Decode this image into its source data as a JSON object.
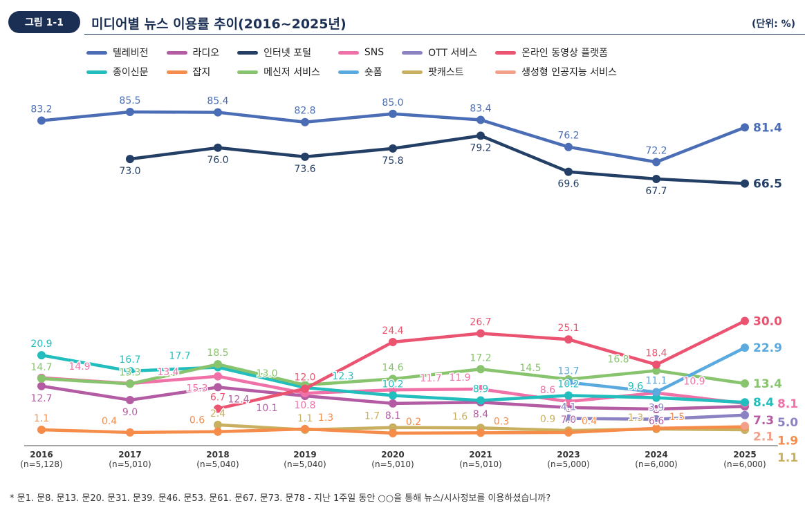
{
  "header": {
    "badge": "그림 1-1",
    "title": "미디어별 뉴스 이용률 추이(2016~2025년)",
    "unit": "(단위: %)"
  },
  "footnote": "* 문1. 문8. 문13. 문20. 문31. 문39. 문46. 문53. 문61. 문67. 문73. 문78 - 지난 1주일 동안 ○○을 통해 뉴스/시사정보를 이용하셨습니까?",
  "chart_data": {
    "type": "line",
    "categories": [
      "2016",
      "2017",
      "2018",
      "2019",
      "2020",
      "2021",
      "2023",
      "2024",
      "2025"
    ],
    "sample_sizes": [
      "(n=5,128)",
      "(n=5,010)",
      "(n=5,040)",
      "(n=5,040)",
      "(n=5,010)",
      "(n=5,010)",
      "(n=5,000)",
      "(n=6,000)",
      "(n=6,000)"
    ],
    "ylim": [
      0,
      90
    ],
    "grid": false,
    "legend_placement": "top",
    "series": [
      {
        "name": "텔레비전",
        "color": "#4a6db5",
        "values": [
          83.2,
          85.5,
          85.4,
          82.8,
          85.0,
          83.4,
          76.2,
          72.2,
          81.4
        ]
      },
      {
        "name": "라디오",
        "color": "#b35ca3",
        "values": [
          12.7,
          9.0,
          12.4,
          10.1,
          8.1,
          8.4,
          7.0,
          6.6,
          7.3
        ]
      },
      {
        "name": "인터넷 포털",
        "color": "#243f66",
        "values": [
          null,
          73.0,
          76.0,
          73.6,
          75.8,
          79.2,
          69.6,
          67.7,
          66.5
        ]
      },
      {
        "name": "SNS",
        "color": "#f070a8",
        "values": [
          14.9,
          13.4,
          15.3,
          10.8,
          11.7,
          11.9,
          8.6,
          10.9,
          8.1
        ]
      },
      {
        "name": "OTT 서비스",
        "color": "#8a82c2",
        "values": [
          null,
          null,
          null,
          null,
          null,
          null,
          4.1,
          3.9,
          5.0
        ]
      },
      {
        "name": "온라인 동영상 플랫폼",
        "color": "#ea5470",
        "values": [
          null,
          null,
          6.7,
          12.0,
          24.4,
          26.7,
          25.1,
          18.4,
          30.0
        ]
      },
      {
        "name": "종이신문",
        "color": "#22bdbd",
        "values": [
          20.9,
          16.7,
          17.7,
          12.3,
          10.2,
          8.9,
          10.2,
          9.6,
          8.4
        ]
      },
      {
        "name": "잡지",
        "color": "#f58c4a",
        "values": [
          1.1,
          0.4,
          0.6,
          1.3,
          0.2,
          0.3,
          0.4,
          1.5,
          1.9
        ]
      },
      {
        "name": "메신저 서비스",
        "color": "#88c46e",
        "values": [
          14.7,
          13.3,
          18.5,
          13.0,
          14.6,
          17.2,
          14.5,
          16.8,
          13.4
        ]
      },
      {
        "name": "숏폼",
        "color": "#5aaae0",
        "values": [
          null,
          null,
          null,
          null,
          null,
          null,
          13.7,
          11.1,
          22.9
        ]
      },
      {
        "name": "팟캐스트",
        "color": "#c8b060",
        "values": [
          null,
          null,
          2.4,
          1.1,
          1.7,
          1.6,
          0.9,
          1.3,
          1.1
        ]
      },
      {
        "name": "생성형 인공지능 서비스",
        "color": "#f2a08a",
        "values": [
          null,
          null,
          null,
          null,
          null,
          null,
          null,
          null,
          2.1
        ]
      }
    ]
  }
}
